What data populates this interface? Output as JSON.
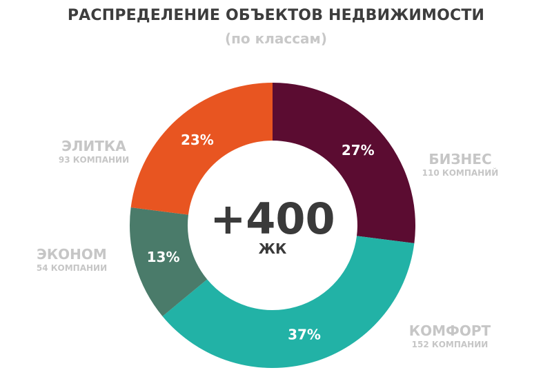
{
  "chart_data": {
    "type": "pie",
    "title": "РАСПРЕДЕЛЕНИЕ ОБЪЕКТОВ НЕДВИЖИМОСТИ",
    "subtitle": "(по классам)",
    "center_value": "+400",
    "center_label": "ЖК",
    "slices": [
      {
        "name": "БИЗНЕС",
        "percent": 27,
        "percent_label": "27%",
        "count_label": "110 КОМПАНИЙ",
        "color": "#5b0c31"
      },
      {
        "name": "КОМФОРТ",
        "percent": 37,
        "percent_label": "37%",
        "count_label": "152 КОМПАНИИ",
        "color": "#22b2a6"
      },
      {
        "name": "ЭКОНОМ",
        "percent": 13,
        "percent_label": "13%",
        "count_label": "54 КОМПАНИИ",
        "color": "#4a7b6a"
      },
      {
        "name": "ЭЛИТКА",
        "percent": 23,
        "percent_label": "23%",
        "count_label": "93 КОМПАНИИ",
        "color": "#e85521"
      }
    ],
    "legend": "beside-slices"
  }
}
